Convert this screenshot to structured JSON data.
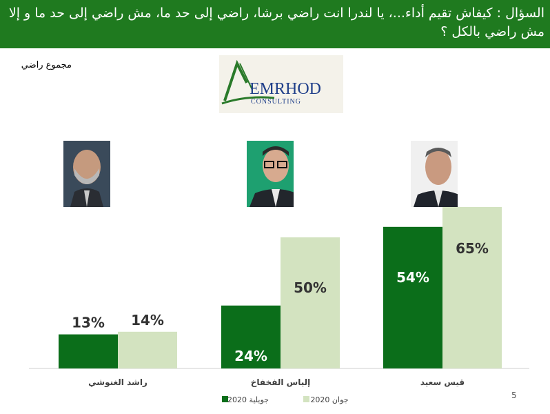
{
  "header": {
    "title": "السؤال : كيفاش تقيم أداء...، يا لندرا انت راضي برشا، راضي إلى حد ما، مش راضي إلى حد ما و إلا مش راضي بالكل ؟"
  },
  "subtitle": "مجموع راضي",
  "logo": {
    "name": "EMRHOD",
    "tagline": "CONSULTING"
  },
  "colors": {
    "header_bg": "#1f7a1f",
    "july": "#0b6e1a",
    "june": "#d3e3c0"
  },
  "page_number": "5",
  "chart_data": {
    "type": "bar",
    "categories": [
      "راشد الغنوشي",
      "إلياس الفخفاخ",
      "قيس سعيد"
    ],
    "series": [
      {
        "name": "جويلية 2020",
        "values": [
          13,
          24,
          54
        ],
        "labels": [
          "13%",
          "24%",
          "54%"
        ]
      },
      {
        "name": "جوان 2020",
        "values": [
          14,
          50,
          65
        ],
        "labels": [
          "14%",
          "50%",
          "65%"
        ]
      }
    ],
    "ylim": [
      0,
      80
    ],
    "grid": false,
    "legend": "bottom"
  }
}
